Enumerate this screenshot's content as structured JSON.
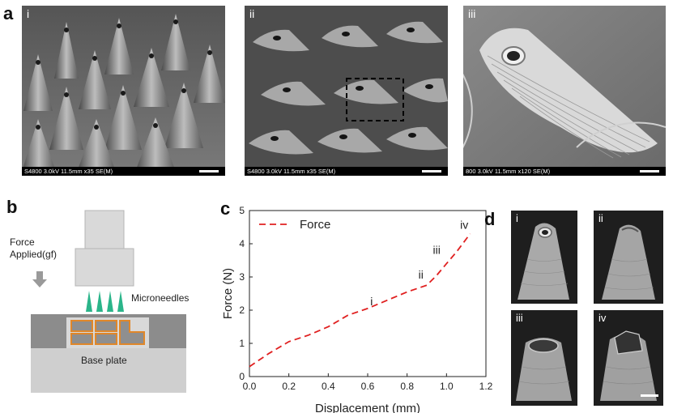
{
  "panels": {
    "a": {
      "letter": "a",
      "images": [
        {
          "roman": "i",
          "caption": "S4800 3.0kV 11.5mm x35 SE(M)"
        },
        {
          "roman": "ii",
          "caption": "S4800 3.0kV 11.5mm x35 SE(M)"
        },
        {
          "roman": "iii",
          "caption": "800 3.0kV 11.5mm x120 SE(M)"
        }
      ]
    },
    "b": {
      "letter": "b",
      "force_label_line1": "Force",
      "force_label_line2": "Applied(gf)",
      "microneedles_label": "Microneedles",
      "base_plate_label": "Base plate",
      "colors": {
        "needle": "#2bb58a",
        "holder": "#d9d9d9",
        "stage": "#8c8c8c",
        "cell_border": "#e0872a"
      }
    },
    "c": {
      "letter": "c"
    },
    "d": {
      "letter": "d",
      "images": [
        {
          "roman": "i"
        },
        {
          "roman": "ii"
        },
        {
          "roman": "iii"
        },
        {
          "roman": "iv"
        }
      ]
    }
  },
  "chart_data": {
    "type": "line",
    "xlabel": "Displacement (mm)",
    "ylabel": "Force (N)",
    "xlim": [
      0.0,
      1.2
    ],
    "ylim": [
      0,
      5
    ],
    "xticks": [
      "0.0",
      "0.2",
      "0.4",
      "0.6",
      "0.8",
      "1.0",
      "1.2"
    ],
    "yticks": [
      "0",
      "1",
      "2",
      "3",
      "4",
      "5"
    ],
    "legend_position": "top-left",
    "series": [
      {
        "name": "Force",
        "color": "#e02020",
        "style": "dashed",
        "x": [
          0.0,
          0.1,
          0.2,
          0.3,
          0.4,
          0.5,
          0.6,
          0.7,
          0.8,
          0.9,
          0.95,
          1.0,
          1.05,
          1.12
        ],
        "y": [
          0.3,
          0.7,
          1.05,
          1.25,
          1.5,
          1.85,
          2.05,
          2.3,
          2.55,
          2.75,
          3.05,
          3.4,
          3.75,
          4.3
        ]
      }
    ],
    "annotations": [
      {
        "text": "i",
        "x": 0.62,
        "y": 2.15
      },
      {
        "text": "ii",
        "x": 0.87,
        "y": 2.95
      },
      {
        "text": "iii",
        "x": 0.95,
        "y": 3.7
      },
      {
        "text": "iv",
        "x": 1.09,
        "y": 4.45
      }
    ]
  }
}
